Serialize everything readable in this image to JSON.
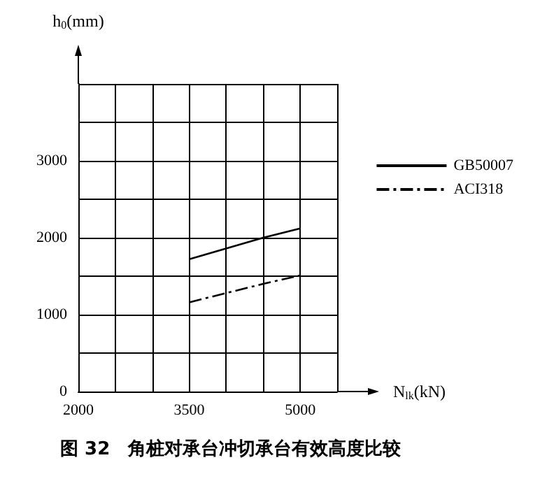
{
  "chart_data": {
    "type": "line",
    "title": "图 32　角桩对承台冲切承台有效高度比较",
    "xlabel": "N$_{lk}$(kN)",
    "ylabel": "h$_{0}$(mm)",
    "x": [
      3500,
      4500,
      5000
    ],
    "series": [
      {
        "name": "GB50007",
        "color": "#000000",
        "values": [
          1720,
          2000,
          2120
        ],
        "line_style": "solid"
      },
      {
        "name": "ACI318",
        "color": "#000000",
        "values": [
          1160,
          1400,
          1510
        ],
        "line_style": "dashed"
      }
    ],
    "xlim": [
      2000,
      5500
    ],
    "xticks": [
      2000,
      {
        "value": 2500,
        "label": null
      },
      {
        "value": 3000,
        "label": null
      },
      3500,
      {
        "value": 4000,
        "label": null
      },
      {
        "value": 4500,
        "label": null
      },
      5000,
      {
        "value": 5500,
        "label": null
      }
    ],
    "ylim": [
      0,
      4000
    ],
    "yticks": [
      0,
      {
        "value": 500,
        "label": null
      },
      1000,
      {
        "value": 1500,
        "label": null
      },
      2000,
      {
        "value": 2500,
        "label": null
      },
      3000,
      {
        "value": 3500,
        "label": null
      },
      {
        "value": 4000,
        "label": null
      }
    ],
    "grid": true,
    "legend": "right",
    "marker": "none"
  }
}
